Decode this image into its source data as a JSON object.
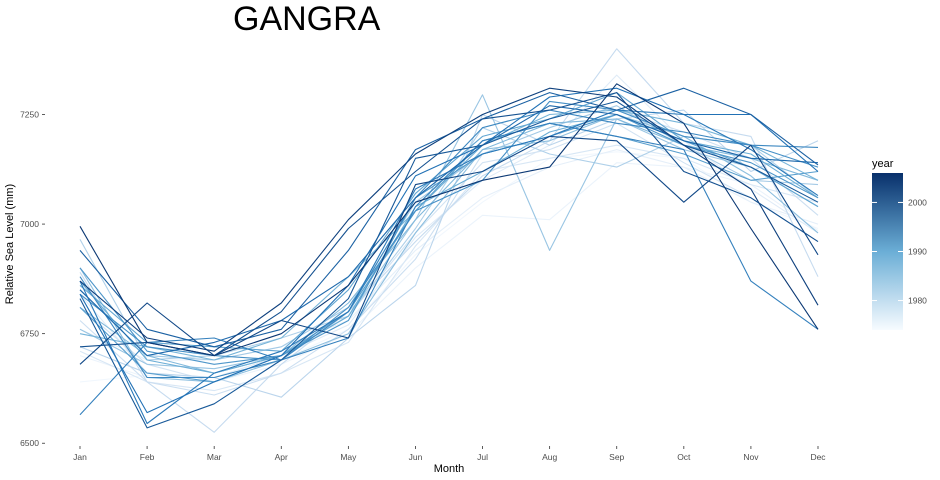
{
  "chart_data": {
    "type": "line",
    "title": "GANGRA",
    "xlabel": "Month",
    "ylabel": "Relative Sea Level (mm)",
    "categories": [
      "Jan",
      "Feb",
      "Mar",
      "Apr",
      "May",
      "Jun",
      "Jul",
      "Aug",
      "Sep",
      "Oct",
      "Nov",
      "Dec"
    ],
    "y_ticks": [
      6500,
      6750,
      7000,
      7250
    ],
    "ylim": [
      6480,
      7420
    ],
    "grid": false,
    "legend": {
      "title": "year",
      "placement": "right",
      "type": "colorbar",
      "range": [
        1974,
        2006
      ],
      "ticks": [
        1980,
        1990,
        2000
      ],
      "color_low": "#f7fbff",
      "color_high": "#08306b"
    },
    "series": [
      {
        "year": 1975,
        "values": [
          6640,
          6655,
          6650,
          6690,
          6760,
          6930,
          7050,
          7150,
          7165,
          7150,
          7050,
          6990
        ]
      },
      {
        "year": 1976,
        "values": [
          6700,
          6650,
          6640,
          6680,
          6750,
          6900,
          7020,
          7010,
          7140,
          7130,
          7090,
          6985
        ]
      },
      {
        "year": 1977,
        "values": [
          6760,
          6690,
          6690,
          6720,
          6780,
          6940,
          7060,
          7130,
          7170,
          7130,
          7050,
          7000
        ]
      },
      {
        "year": 1978,
        "values": [
          6840,
          6660,
          6650,
          6700,
          6770,
          6970,
          7100,
          7180,
          7340,
          7190,
          7080,
          6980
        ]
      },
      {
        "year": 1979,
        "values": [
          6710,
          6640,
          6620,
          6660,
          6730,
          6950,
          7120,
          7150,
          7180,
          7150,
          7090,
          7050
        ]
      },
      {
        "year": 1980,
        "values": [
          6810,
          6680,
          6640,
          6700,
          6790,
          6980,
          7140,
          7170,
          7230,
          7140,
          7060,
          6960
        ]
      },
      {
        "year": 1981,
        "values": [
          6780,
          6640,
          6610,
          6660,
          6760,
          6920,
          7160,
          7200,
          7260,
          7210,
          7150,
          7020
        ]
      },
      {
        "year": 1982,
        "values": [
          6890,
          6640,
          6525,
          6680,
          6800,
          6960,
          7110,
          7190,
          7400,
          7230,
          7200,
          6880
        ]
      },
      {
        "year": 1983,
        "values": [
          6720,
          6660,
          6650,
          6605,
          6740,
          6860,
          7250,
          7180,
          7240,
          7260,
          7120,
          7190
        ]
      },
      {
        "year": 1984,
        "values": [
          6965,
          6690,
          6700,
          6740,
          6790,
          6990,
          7220,
          7160,
          7130,
          7200,
          7180,
          7060
        ]
      },
      {
        "year": 1985,
        "values": [
          6850,
          6700,
          6690,
          6720,
          6810,
          7050,
          7160,
          7220,
          7270,
          7180,
          7100,
          7090
        ]
      },
      {
        "year": 1986,
        "values": [
          6760,
          6680,
          6670,
          6700,
          6790,
          7010,
          7295,
          6940,
          7240,
          7170,
          7130,
          7040
        ]
      },
      {
        "year": 1987,
        "values": [
          6900,
          6650,
          6640,
          6690,
          6750,
          6980,
          7170,
          7190,
          7250,
          7200,
          7110,
          6980
        ]
      },
      {
        "year": 1988,
        "values": [
          6810,
          6700,
          6660,
          6700,
          6820,
          7010,
          7170,
          7230,
          7240,
          7180,
          7150,
          7100
        ]
      },
      {
        "year": 1989,
        "values": [
          6750,
          6720,
          6690,
          6740,
          6880,
          7030,
          7180,
          7250,
          7260,
          7230,
          7180,
          7100
        ]
      },
      {
        "year": 1990,
        "values": [
          6870,
          6690,
          6660,
          6700,
          6790,
          7040,
          7120,
          7210,
          7250,
          7190,
          7160,
          7060
        ]
      },
      {
        "year": 1991,
        "values": [
          6860,
          6730,
          6720,
          6710,
          6850,
          7070,
          7200,
          7240,
          7300,
          7190,
          7130,
          7040
        ]
      },
      {
        "year": 1992,
        "values": [
          6810,
          6660,
          6640,
          6700,
          6800,
          7030,
          7190,
          7230,
          7200,
          7160,
          7100,
          7120
        ]
      },
      {
        "year": 1993,
        "values": [
          6900,
          6710,
          6680,
          6700,
          6780,
          7060,
          7160,
          7200,
          7250,
          7180,
          7140,
          7060
        ]
      },
      {
        "year": 1994,
        "values": [
          6840,
          6720,
          6700,
          6690,
          6810,
          7030,
          7100,
          7280,
          7260,
          7200,
          7180,
          7130
        ]
      },
      {
        "year": 1995,
        "values": [
          6880,
          6650,
          6650,
          6690,
          6800,
          7060,
          7220,
          7260,
          7230,
          7210,
          7180,
          7175
        ]
      },
      {
        "year": 1996,
        "values": [
          6565,
          6730,
          6740,
          6690,
          6740,
          7040,
          7190,
          7230,
          7200,
          7170,
          6870,
          6760
        ]
      },
      {
        "year": 1997,
        "values": [
          6870,
          6545,
          6660,
          6710,
          6800,
          7080,
          7160,
          7200,
          7260,
          7250,
          7170,
          7065
        ]
      },
      {
        "year": 1998,
        "values": [
          6840,
          6570,
          6640,
          6700,
          6860,
          7110,
          7180,
          7290,
          7310,
          7250,
          7250,
          7120
        ]
      },
      {
        "year": 1999,
        "values": [
          6850,
          6700,
          6730,
          6780,
          6880,
          7060,
          7180,
          7270,
          7250,
          7190,
          7150,
          7140
        ]
      },
      {
        "year": 2000,
        "values": [
          6940,
          6760,
          6720,
          6760,
          6940,
          7170,
          7240,
          7300,
          7260,
          7310,
          7250,
          7135
        ]
      },
      {
        "year": 2001,
        "values": [
          6830,
          6535,
          6590,
          6690,
          6830,
          7150,
          7180,
          7240,
          7280,
          7180,
          7130,
          7050
        ]
      },
      {
        "year": 2002,
        "values": [
          6720,
          6730,
          6700,
          6800,
          6990,
          7120,
          7240,
          7260,
          7300,
          7120,
          7060,
          6960
        ]
      },
      {
        "year": 2003,
        "values": [
          6680,
          6820,
          6700,
          6780,
          6740,
          7090,
          7120,
          7200,
          7190,
          7050,
          7180,
          6930
        ]
      },
      {
        "year": 2004,
        "values": [
          6870,
          6740,
          6710,
          6820,
          7010,
          7160,
          7250,
          7310,
          7290,
          7180,
          7080,
          6815
        ]
      },
      {
        "year": 2005,
        "values": [
          6995,
          6730,
          6700,
          6750,
          6860,
          7050,
          7100,
          7130,
          7320,
          7230,
          6990,
          6760
        ]
      }
    ]
  }
}
